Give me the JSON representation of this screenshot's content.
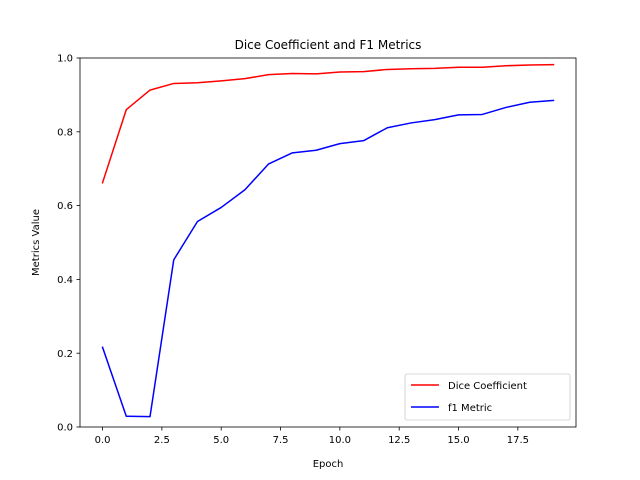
{
  "chart_data": {
    "type": "line",
    "title": "Dice Coefficient and F1 Metrics",
    "xlabel": "Epoch",
    "ylabel": "Metrics Value",
    "xlim": [
      -0.95,
      19.95
    ],
    "ylim": [
      0.0,
      1.0
    ],
    "xticks": [
      0.0,
      2.5,
      5.0,
      7.5,
      10.0,
      12.5,
      15.0,
      17.5
    ],
    "xtick_labels": [
      "0.0",
      "2.5",
      "5.0",
      "7.5",
      "10.0",
      "12.5",
      "15.0",
      "17.5"
    ],
    "yticks": [
      0.0,
      0.2,
      0.4,
      0.6,
      0.8,
      1.0
    ],
    "ytick_labels": [
      "0.0",
      "0.2",
      "0.4",
      "0.6",
      "0.8",
      "1.0"
    ],
    "grid": false,
    "legend_position": "lower-right",
    "x": [
      0,
      1,
      2,
      3,
      4,
      5,
      6,
      7,
      8,
      9,
      10,
      11,
      12,
      13,
      14,
      15,
      16,
      17,
      18,
      19
    ],
    "series": [
      {
        "name": "Dice Coefficient",
        "color": "#ff0000",
        "values": [
          0.662,
          0.86,
          0.913,
          0.931,
          0.933,
          0.938,
          0.944,
          0.955,
          0.958,
          0.957,
          0.962,
          0.963,
          0.969,
          0.971,
          0.972,
          0.975,
          0.975,
          0.979,
          0.981,
          0.982
        ]
      },
      {
        "name": "f1 Metric",
        "color": "#0000ff",
        "values": [
          0.216,
          0.029,
          0.028,
          0.453,
          0.557,
          0.595,
          0.643,
          0.713,
          0.743,
          0.75,
          0.768,
          0.776,
          0.811,
          0.824,
          0.833,
          0.846,
          0.847,
          0.866,
          0.88,
          0.885
        ]
      }
    ]
  }
}
